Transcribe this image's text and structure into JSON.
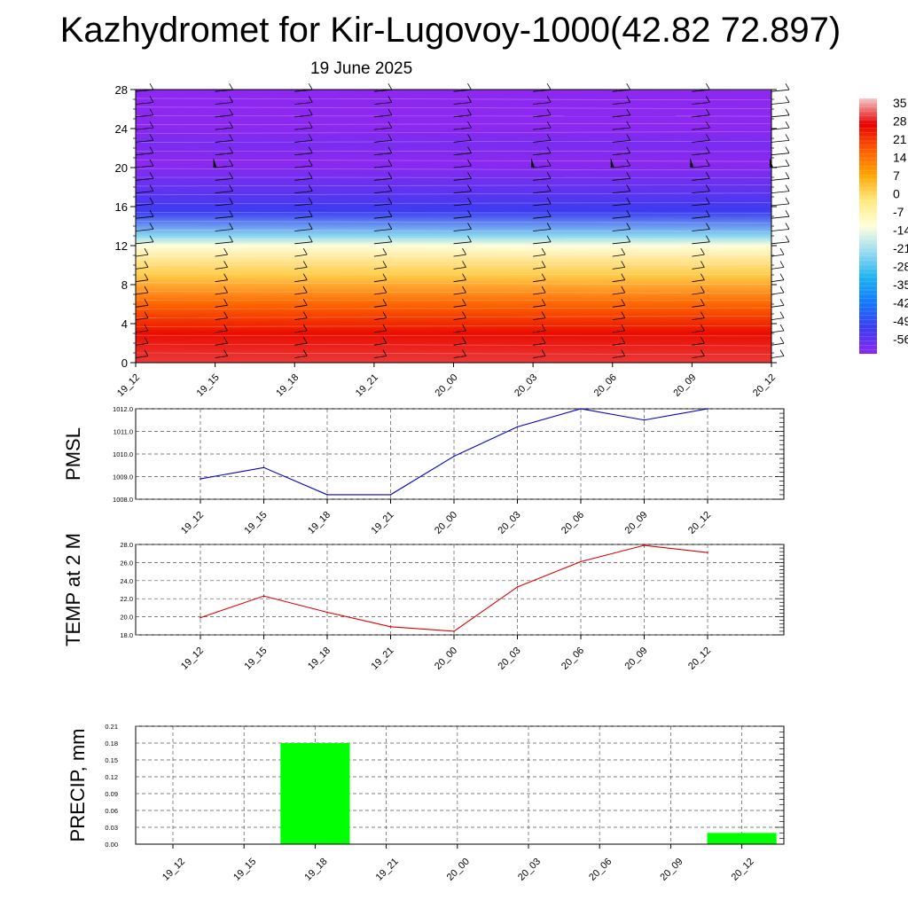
{
  "title": "Kazhydromet for Kir-Lugovoy-1000(42.82 72.897)",
  "date": "19 June 2025",
  "colorbar": {
    "labels": [
      "35",
      "28",
      "21",
      "14",
      "7",
      "0",
      "-7",
      "-14",
      "-21",
      "-28",
      "-35",
      "-42",
      "-49",
      "-56"
    ],
    "colors": [
      "#f5c8c8",
      "#e60000",
      "#ff5a00",
      "#ffa500",
      "#ffe97f",
      "#ffffdc",
      "#9adcf0",
      "#1eb4f0",
      "#1478ff",
      "#3c3cf0",
      "#8c28f0"
    ]
  },
  "chart_data": [
    {
      "type": "heatmap",
      "name": "vertical cross-section",
      "x": [
        "19_12",
        "19_15",
        "19_18",
        "19_21",
        "20_00",
        "20_03",
        "20_06",
        "20_09",
        "20_12"
      ],
      "y_ticks": [
        0,
        4,
        8,
        12,
        16,
        20,
        24,
        28
      ],
      "ylim": [
        0,
        28
      ],
      "z_range": [
        -56,
        35
      ],
      "profile": [
        {
          "y": 0,
          "value": 30
        },
        {
          "y": 3,
          "value": 27
        },
        {
          "y": 6,
          "value": 20
        },
        {
          "y": 9,
          "value": 10
        },
        {
          "y": 12,
          "value": 0
        },
        {
          "y": 13,
          "value": -8
        },
        {
          "y": 15.5,
          "value": -28
        },
        {
          "y": 18,
          "value": -42
        },
        {
          "y": 20.5,
          "value": -58
        },
        {
          "y": 22.5,
          "value": -49
        },
        {
          "y": 24,
          "value": -56
        },
        {
          "y": 28,
          "value": -56
        }
      ],
      "wind_barbs": true
    },
    {
      "type": "line",
      "ylabel": "PMSL",
      "x": [
        "19_12",
        "19_15",
        "19_18",
        "19_21",
        "20_00",
        "20_03",
        "20_06",
        "20_09",
        "20_12"
      ],
      "series": [
        {
          "values": [
            1008.9,
            1009.4,
            1008.2,
            1008.2,
            1009.9,
            1011.2,
            1012.0,
            1011.5,
            1012.0
          ],
          "color": "#0000cc"
        }
      ],
      "ylim": [
        1008.0,
        1012.0
      ],
      "yticks": [
        "1008.0",
        "1009.0",
        "1010.0",
        "1011.0",
        "1012.0"
      ],
      "grid": true
    },
    {
      "type": "line",
      "ylabel": "TEMP at 2 M",
      "x": [
        "19_12",
        "19_15",
        "19_18",
        "19_21",
        "20_00",
        "20_03",
        "20_06",
        "20_09",
        "20_12"
      ],
      "series": [
        {
          "values": [
            19.9,
            22.3,
            20.5,
            18.9,
            18.4,
            23.3,
            26.1,
            27.9,
            27.1
          ],
          "color": "#dd0000"
        }
      ],
      "ylim": [
        18.0,
        28.0
      ],
      "yticks": [
        "18.0",
        "20.0",
        "22.0",
        "24.0",
        "26.0",
        "28.0"
      ],
      "grid": true
    },
    {
      "type": "bar",
      "ylabel": "PRECIP, mm",
      "categories": [
        "19_12",
        "19_15",
        "19_18",
        "19_21",
        "20_00",
        "20_03",
        "20_06",
        "20_09",
        "20_12"
      ],
      "values": [
        0,
        0,
        0.18,
        0,
        0,
        0,
        0,
        0,
        0.02
      ],
      "color": "#00ff00",
      "ylim": [
        0,
        0.21
      ],
      "yticks": [
        "0.00",
        "0.03",
        "0.06",
        "0.09",
        "0.12",
        "0.15",
        "0.18",
        "0.21"
      ],
      "grid": true
    }
  ]
}
